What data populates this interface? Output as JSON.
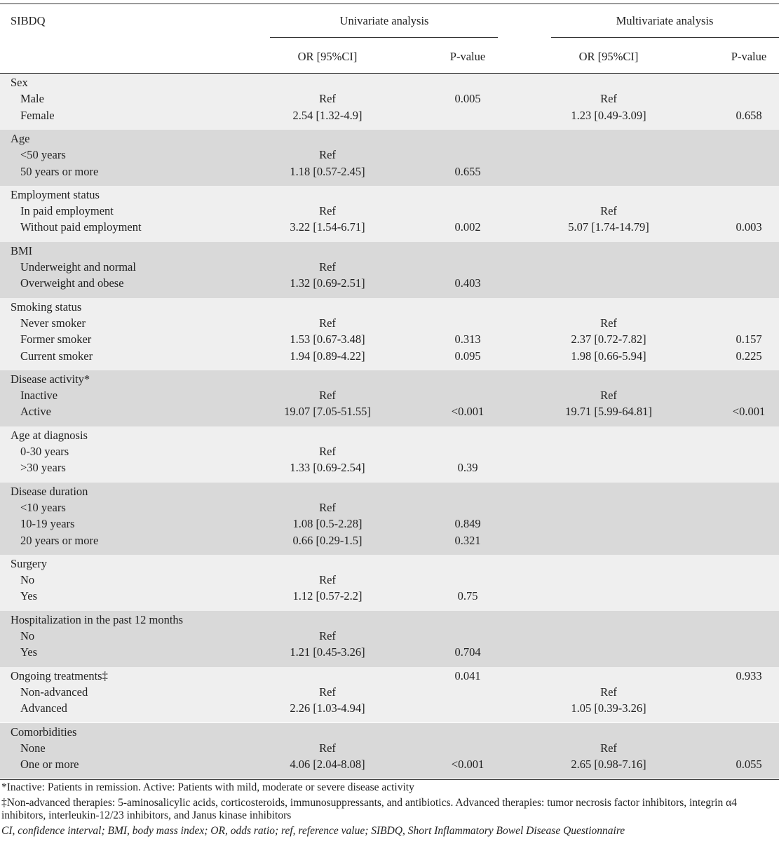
{
  "table": {
    "header": {
      "first": "SIBDQ",
      "univariate": "Univariate analysis",
      "multivariate": "Multivariate analysis",
      "columns": [
        "OR [95%CI]",
        "P-value",
        "OR [95%CI]",
        "P-value"
      ]
    },
    "groups": [
      {
        "label": "Sex",
        "rows": [
          {
            "label": "Male",
            "or_u": "Ref",
            "p_u": "0.005",
            "or_m": "Ref"
          },
          {
            "label": "Female",
            "or_u": "2.54 [1.32-4.9]",
            "or_m": "1.23 [0.49-3.09]",
            "p_m": "0.658"
          }
        ]
      },
      {
        "label": "Age",
        "rows": [
          {
            "label": "<50 years",
            "or_u": "Ref"
          },
          {
            "label": "50 years or more",
            "or_u": "1.18 [0.57-2.45]",
            "p_u": "0.655"
          }
        ]
      },
      {
        "label": "Employment status",
        "rows": [
          {
            "label": "In paid employment",
            "or_u": "Ref",
            "or_m": "Ref"
          },
          {
            "label": "Without paid employment",
            "or_u": "3.22 [1.54-6.71]",
            "p_u": "0.002",
            "or_m": "5.07 [1.74-14.79]",
            "p_m": "0.003"
          }
        ]
      },
      {
        "label": "BMI",
        "rows": [
          {
            "label": "Underweight and normal",
            "or_u": "Ref"
          },
          {
            "label": "Overweight and obese",
            "or_u": "1.32 [0.69-2.51]",
            "p_u": "0.403"
          }
        ]
      },
      {
        "label": "Smoking status",
        "rows": [
          {
            "label": "Never smoker",
            "or_u": "Ref",
            "or_m": "Ref"
          },
          {
            "label": "Former smoker",
            "or_u": "1.53 [0.67-3.48]",
            "p_u": "0.313",
            "or_m": "2.37 [0.72-7.82]",
            "p_m": "0.157"
          },
          {
            "label": "Current smoker",
            "or_u": "1.94 [0.89-4.22]",
            "p_u": "0.095",
            "or_m": "1.98 [0.66-5.94]",
            "p_m": "0.225"
          }
        ]
      },
      {
        "label": "Disease activity*",
        "rows": [
          {
            "label": "Inactive",
            "or_u": "Ref",
            "or_m": "Ref"
          },
          {
            "label": "Active",
            "or_u": "19.07 [7.05-51.55]",
            "p_u": "<0.001",
            "or_m": "19.71 [5.99-64.81]",
            "p_m": "<0.001"
          }
        ]
      },
      {
        "label": "Age at diagnosis",
        "rows": [
          {
            "label": "0-30 years",
            "or_u": "Ref"
          },
          {
            "label": ">30 years",
            "or_u": "1.33 [0.69-2.54]",
            "p_u": "0.39"
          }
        ]
      },
      {
        "label": "Disease duration",
        "rows": [
          {
            "label": "<10 years",
            "or_u": "Ref"
          },
          {
            "label": "10-19 years",
            "or_u": "1.08 [0.5-2.28]",
            "p_u": "0.849"
          },
          {
            "label": "20 years or more",
            "or_u": "0.66 [0.29-1.5]",
            "p_u": "0.321"
          }
        ]
      },
      {
        "label": "Surgery",
        "rows": [
          {
            "label": "No",
            "or_u": "Ref"
          },
          {
            "label": "Yes",
            "or_u": "1.12 [0.57-2.2]",
            "p_u": "0.75"
          }
        ]
      },
      {
        "label": "Hospitalization in the past 12 months",
        "rows": [
          {
            "label": "No",
            "or_u": "Ref"
          },
          {
            "label": "Yes",
            "or_u": "1.21 [0.45-3.26]",
            "p_u": "0.704"
          }
        ]
      },
      {
        "label": "Ongoing treatments‡",
        "p_u": "0.041",
        "p_m": "0.933",
        "rows": [
          {
            "label": "Non-advanced",
            "or_u": "Ref",
            "or_m": "Ref"
          },
          {
            "label": "Advanced",
            "or_u": "2.26 [1.03-4.94]",
            "or_m": "1.05 [0.39-3.26]"
          }
        ]
      },
      {
        "label": "Comorbidities",
        "rows": [
          {
            "label": "None",
            "or_u": "Ref",
            "or_m": "Ref"
          },
          {
            "label": "One or more",
            "or_u": "4.06 [2.04-8.08]",
            "p_u": "<0.001",
            "or_m": "2.65 [0.98-7.16]",
            "p_m": "0.055"
          }
        ]
      }
    ],
    "footnotes": [
      "*Inactive: Patients in remission. Active: Patients with mild, moderate or severe disease activity",
      "‡Non-advanced therapies: 5-aminosalicylic acids, corticosteroids, immunosuppressants, and antibiotics. Advanced therapies: tumor necrosis factor inhibitors, integrin α4 inhibitors, interleukin-12/23 inhibitors, and Janus kinase inhibitors",
      "CI, confidence interval; BMI, body mass index; OR, odds ratio; ref, reference value; SIBDQ, Short Inflammatory Bowel Disease Questionnaire"
    ]
  }
}
